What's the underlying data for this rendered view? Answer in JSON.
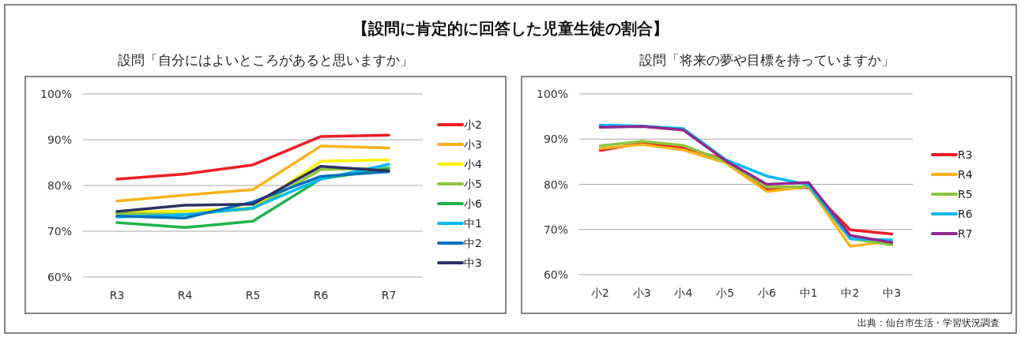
{
  "chart_data": [
    {
      "type": "line",
      "title": "【設問に肯定的に回答した児童生徒の割合】",
      "subtitle": "設問「自分にはよいところがあると思いますか」",
      "categories": [
        "R3",
        "R4",
        "R5",
        "R6",
        "R7"
      ],
      "ylim": [
        60,
        100
      ],
      "yticks": [
        {
          "value": 60,
          "label": "60%"
        },
        {
          "value": 70,
          "label": "70%"
        },
        {
          "value": 80,
          "label": "80%"
        },
        {
          "value": 90,
          "label": "90%"
        },
        {
          "value": 100,
          "label": "100%"
        }
      ],
      "grid": "y",
      "legend": "right",
      "line_style": "solid",
      "series": [
        {
          "name": "小2",
          "color": "#ee1c25",
          "values": [
            81.4,
            82.5,
            84.5,
            90.7,
            91.0
          ]
        },
        {
          "name": "小3",
          "color": "#fbb21b",
          "values": [
            76.6,
            77.9,
            79.1,
            88.6,
            88.2
          ]
        },
        {
          "name": "小4",
          "color": "#fff200",
          "values": [
            74.2,
            74.4,
            75.1,
            85.3,
            85.6
          ]
        },
        {
          "name": "小5",
          "color": "#8dc63f",
          "values": [
            73.9,
            73.7,
            74.9,
            83.5,
            83.8
          ]
        },
        {
          "name": "小6",
          "color": "#1fb34b",
          "values": [
            71.9,
            70.8,
            72.2,
            81.4,
            83.7
          ]
        },
        {
          "name": "中1",
          "color": "#00b9f1",
          "values": [
            73.1,
            73.6,
            75.1,
            81.4,
            84.6
          ]
        },
        {
          "name": "中2",
          "color": "#0072bc",
          "values": [
            73.3,
            72.9,
            76.4,
            82.0,
            83.0
          ]
        },
        {
          "name": "中3",
          "color": "#2e3164",
          "values": [
            74.3,
            75.7,
            75.9,
            84.2,
            83.2
          ]
        }
      ]
    },
    {
      "type": "line",
      "subtitle": "設問「将来の夢や目標を持っていますか」",
      "categories": [
        "小2",
        "小3",
        "小4",
        "小5",
        "小6",
        "中1",
        "中2",
        "中3"
      ],
      "ylim": [
        60,
        100
      ],
      "yticks": [
        {
          "value": 60,
          "label": "60%"
        },
        {
          "value": 70,
          "label": "70%"
        },
        {
          "value": 80,
          "label": "80%"
        },
        {
          "value": 90,
          "label": "90%"
        },
        {
          "value": 100,
          "label": "100%"
        }
      ],
      "grid": "y",
      "legend": "right",
      "line_style": "solid",
      "annotations": [
        "出典：仙台市生活・学習状況調査"
      ],
      "series": [
        {
          "name": "R3",
          "color": "#ee1c25",
          "values": [
            87.5,
            89.1,
            88.1,
            85.5,
            79.0,
            79.3,
            69.9,
            69.0
          ]
        },
        {
          "name": "R4",
          "color": "#fbb21b",
          "values": [
            87.9,
            88.8,
            87.6,
            84.8,
            78.4,
            79.5,
            66.3,
            67.4
          ]
        },
        {
          "name": "R5",
          "color": "#8dc63f",
          "values": [
            88.5,
            89.5,
            88.6,
            85.1,
            79.4,
            79.5,
            68.0,
            66.6
          ]
        },
        {
          "name": "R6",
          "color": "#00b9f1",
          "values": [
            93.1,
            92.9,
            92.3,
            85.5,
            81.8,
            79.9,
            67.9,
            67.7
          ]
        },
        {
          "name": "R7",
          "color": "#92278f",
          "values": [
            92.6,
            92.8,
            92.0,
            85.3,
            80.0,
            80.4,
            68.7,
            67.1
          ]
        }
      ]
    }
  ]
}
